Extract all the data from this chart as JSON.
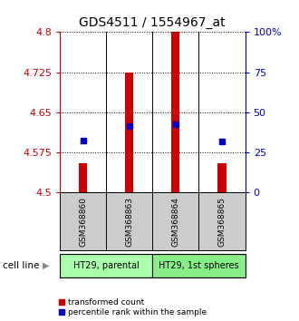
{
  "title": "GDS4511 / 1554967_at",
  "samples": [
    "GSM368860",
    "GSM368863",
    "GSM368864",
    "GSM368865"
  ],
  "red_values": [
    4.555,
    4.725,
    4.8,
    4.555
  ],
  "blue_values": [
    4.598,
    4.625,
    4.628,
    4.595
  ],
  "ymin": 4.5,
  "ymax": 4.8,
  "yticks_left": [
    4.5,
    4.575,
    4.65,
    4.725,
    4.8
  ],
  "yticks_right": [
    0,
    25,
    50,
    75,
    100
  ],
  "cell_lines": [
    {
      "label": "HT29, parental",
      "samples": [
        0,
        1
      ],
      "color": "#aaffaa"
    },
    {
      "label": "HT29, 1st spheres",
      "samples": [
        2,
        3
      ],
      "color": "#88ee88"
    }
  ],
  "bar_color": "#cc0000",
  "blue_color": "#0000cc",
  "bar_width": 0.18,
  "background_color": "#ffffff",
  "plot_bg_color": "#ffffff",
  "left_axis_color": "#cc0000",
  "right_axis_color": "#0000cc",
  "label_fontsize": 8,
  "title_fontsize": 10,
  "sample_label_color": "#cccccc",
  "cell_line_label": "cell line"
}
